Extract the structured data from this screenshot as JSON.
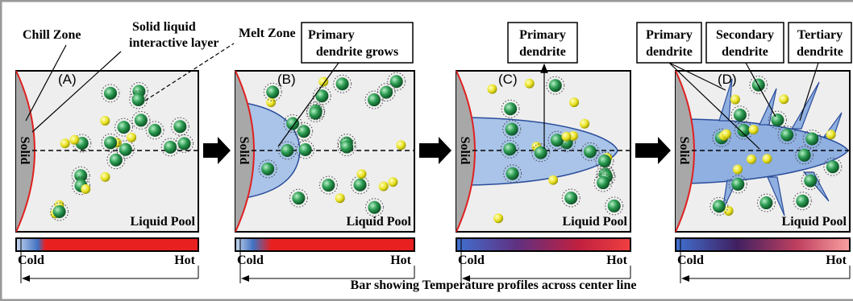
{
  "annotations": {
    "chill_zone": "Chill Zone",
    "interface_line1": "Solid liquid",
    "interface_line2": "interactive layer",
    "melt_zone": "Melt Zone"
  },
  "panels": [
    {
      "letter": "(A)",
      "solid": "Solid",
      "pool": "Liquid Pool",
      "cold": "Cold",
      "hot": "Hot"
    },
    {
      "letter": "(B)",
      "solid": "Solid",
      "pool": "Liquid Pool",
      "cold": "Cold",
      "hot": "Hot"
    },
    {
      "letter": "(C)",
      "solid": "Solid",
      "pool": "Liquid Pool",
      "cold": "Cold",
      "hot": "Hot"
    },
    {
      "letter": "(D)",
      "solid": "Solid",
      "pool": "Liquid Pool",
      "cold": "Cold",
      "hot": "Hot"
    }
  ],
  "callouts": [
    {
      "lines": [
        "Primary",
        "dendrite   grows"
      ]
    },
    {
      "lines": [
        "Primary",
        "dendrite"
      ]
    },
    {
      "lines": [
        "Primary",
        "dendrite"
      ]
    },
    {
      "lines": [
        "Secondary",
        "dendrite"
      ]
    },
    {
      "lines": [
        "Tertiary",
        "dendrite"
      ]
    }
  ],
  "caption": "Bar showing Temperature profiles across center line"
}
